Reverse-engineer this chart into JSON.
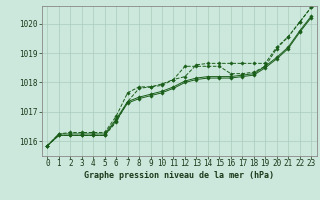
{
  "xlabel": "Graphe pression niveau de la mer (hPa)",
  "background_color": "#cce8dc",
  "grid_color": "#aaccbb",
  "line_color": "#1a5e1a",
  "ylim": [
    1015.5,
    1020.6
  ],
  "xlim": [
    -0.5,
    23.5
  ],
  "yticks": [
    1016,
    1017,
    1018,
    1019,
    1020
  ],
  "xticks": [
    0,
    1,
    2,
    3,
    4,
    5,
    6,
    7,
    8,
    9,
    10,
    11,
    12,
    13,
    14,
    15,
    16,
    17,
    18,
    19,
    20,
    21,
    22,
    23
  ],
  "line1": [
    1015.85,
    1016.2,
    1016.2,
    1016.2,
    1016.2,
    1016.2,
    1016.65,
    1017.35,
    1017.8,
    1017.85,
    1017.95,
    1018.1,
    1018.55,
    1018.55,
    1018.55,
    1018.55,
    1018.3,
    1018.3,
    1018.35,
    1018.55,
    1019.15,
    1019.55,
    1020.05,
    1020.55
  ],
  "line2": [
    1015.85,
    1016.2,
    1016.2,
    1016.2,
    1016.2,
    1016.2,
    1016.7,
    1017.3,
    1017.45,
    1017.55,
    1017.65,
    1017.8,
    1018.0,
    1018.1,
    1018.15,
    1018.15,
    1018.15,
    1018.2,
    1018.25,
    1018.5,
    1018.8,
    1019.15,
    1019.7,
    1020.2
  ],
  "line3": [
    1015.85,
    1016.25,
    1016.25,
    1016.25,
    1016.25,
    1016.25,
    1016.75,
    1017.35,
    1017.5,
    1017.6,
    1017.7,
    1017.85,
    1018.05,
    1018.15,
    1018.2,
    1018.2,
    1018.2,
    1018.25,
    1018.3,
    1018.55,
    1018.85,
    1019.2,
    1019.75,
    1020.25
  ],
  "line4": [
    1015.85,
    1016.25,
    1016.3,
    1016.3,
    1016.3,
    1016.3,
    1016.85,
    1017.65,
    1017.85,
    1017.85,
    1017.9,
    1018.1,
    1018.2,
    1018.6,
    1018.65,
    1018.65,
    1018.65,
    1018.65,
    1018.65,
    1018.65,
    1019.2,
    1019.55,
    1020.05,
    1020.55
  ],
  "tick_fontsize": 5.5,
  "xlabel_fontsize": 6.0,
  "linewidth": 0.7,
  "markersize": 1.8
}
